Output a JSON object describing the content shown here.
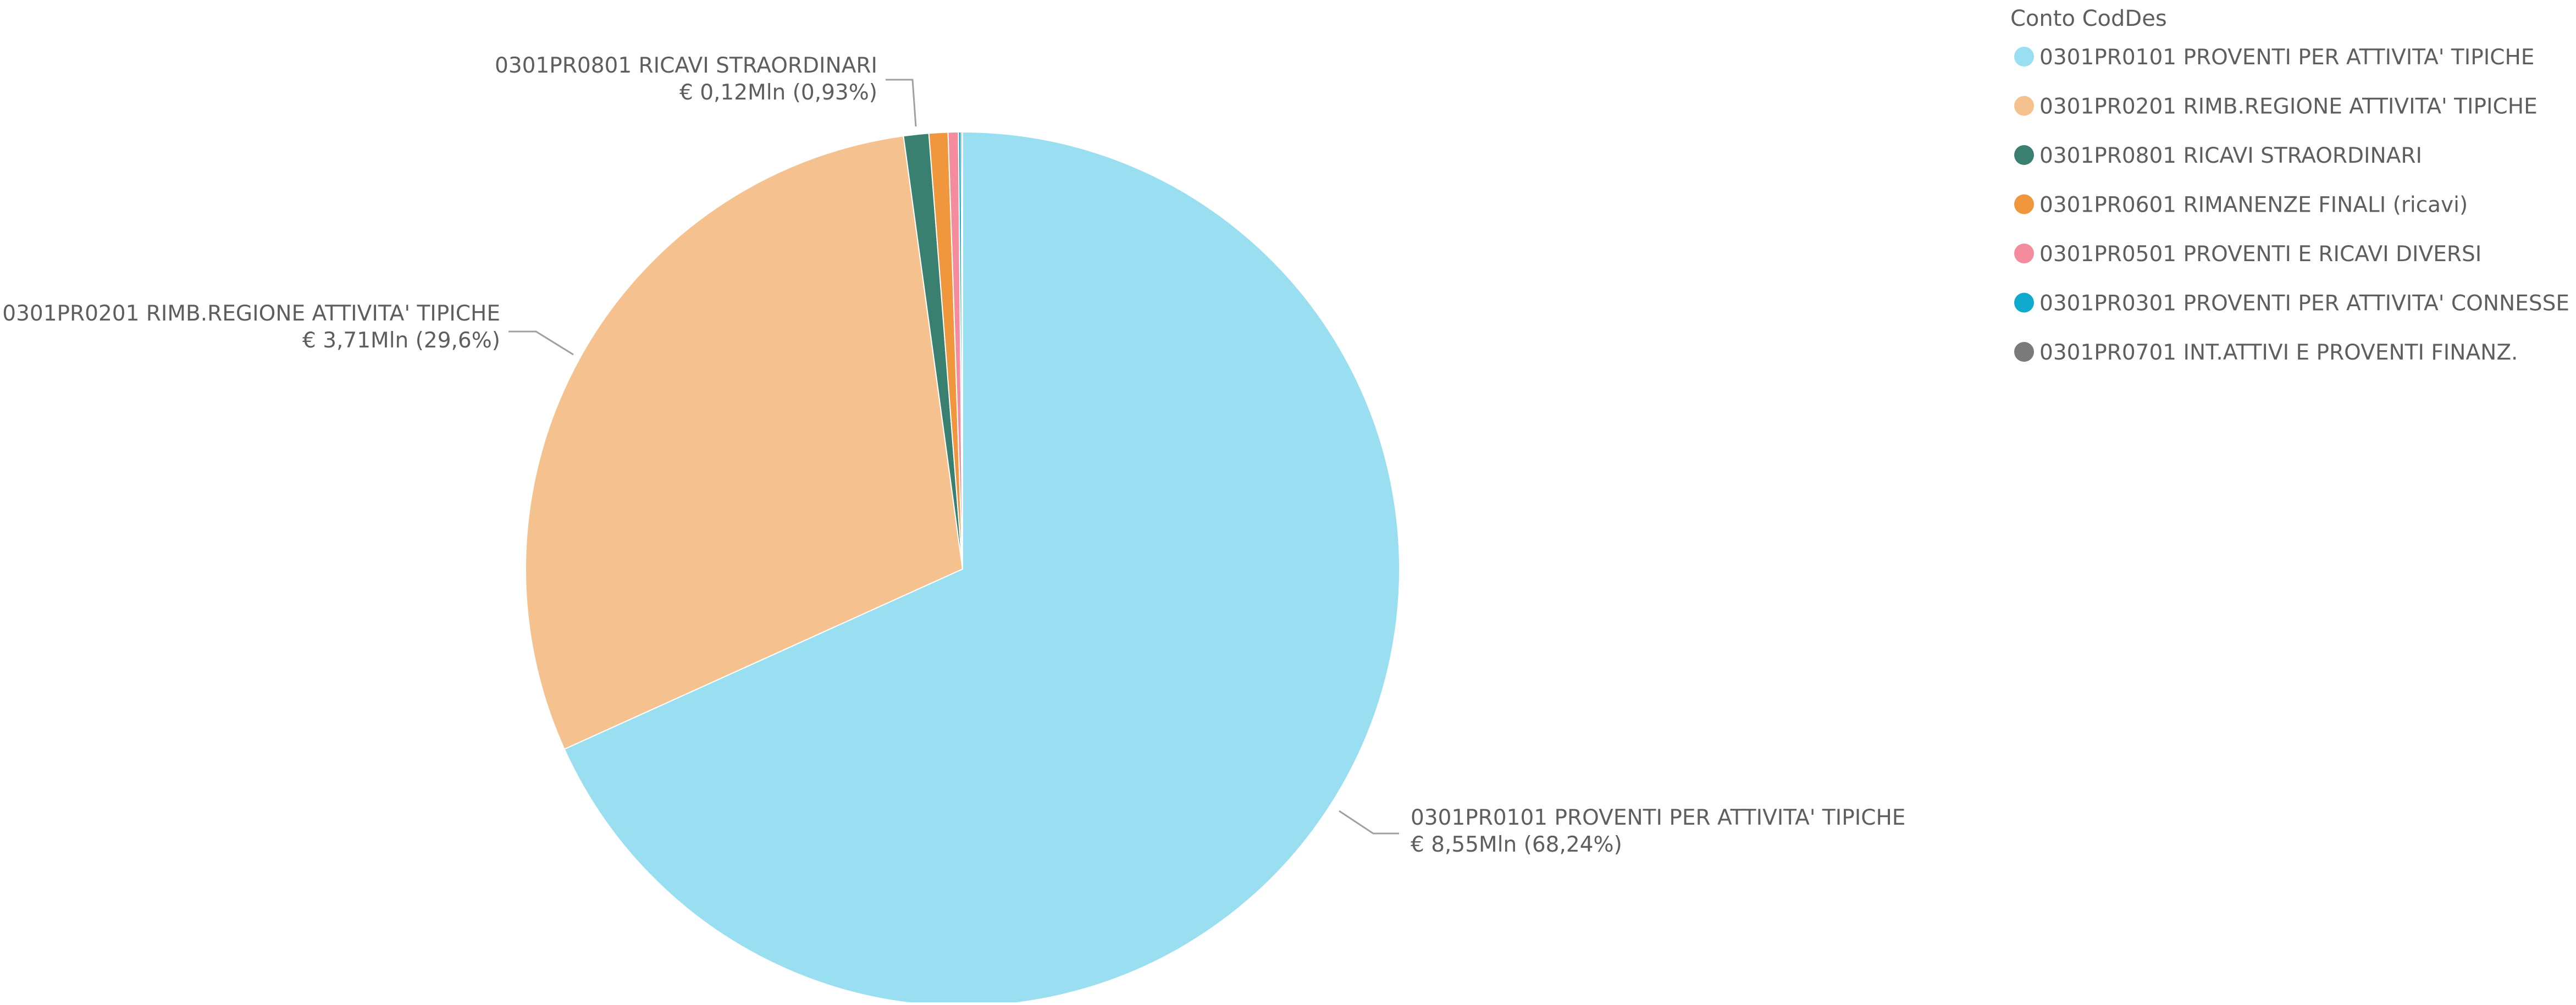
{
  "chart_data": {
    "type": "pie",
    "legend": {
      "title": "Conto CodDes",
      "position": "top-right"
    },
    "slices": [
      {
        "name": "0301PR0101 PROVENTI PER ATTIVITA' TIPICHE",
        "value": 68.24,
        "amount": "€ 8,55Mln",
        "label": "€ 8,55Mln (68,24%)",
        "color": "#9ADFF1"
      },
      {
        "name": "0301PR0201 RIMB.REGIONE ATTIVITA' TIPICHE",
        "value": 29.6,
        "amount": "€ 3,71Mln",
        "label": "€ 3,71Mln (29,6%)",
        "color": "#F5C28F"
      },
      {
        "name": "0301PR0801 RICAVI STRAORDINARI",
        "value": 0.93,
        "amount": "€ 0,12Mln",
        "label": "€ 0,12Mln (0,93%)",
        "color": "#3A8070"
      },
      {
        "name": "0301PR0601 RIMANENZE FINALI (ricavi)",
        "value": 0.7,
        "color": "#F0963C"
      },
      {
        "name": "0301PR0501 PROVENTI E RICAVI DIVERSI",
        "value": 0.38,
        "color": "#F48C9E"
      },
      {
        "name": "0301PR0301 PROVENTI PER ATTIVITA' CONNESSE",
        "value": 0.1,
        "color": "#11AACF"
      },
      {
        "name": "0301PR0701 INT.ATTIVI E PROVENTI FINANZ.",
        "value": 0.05,
        "color": "#7A7A7A"
      }
    ]
  }
}
